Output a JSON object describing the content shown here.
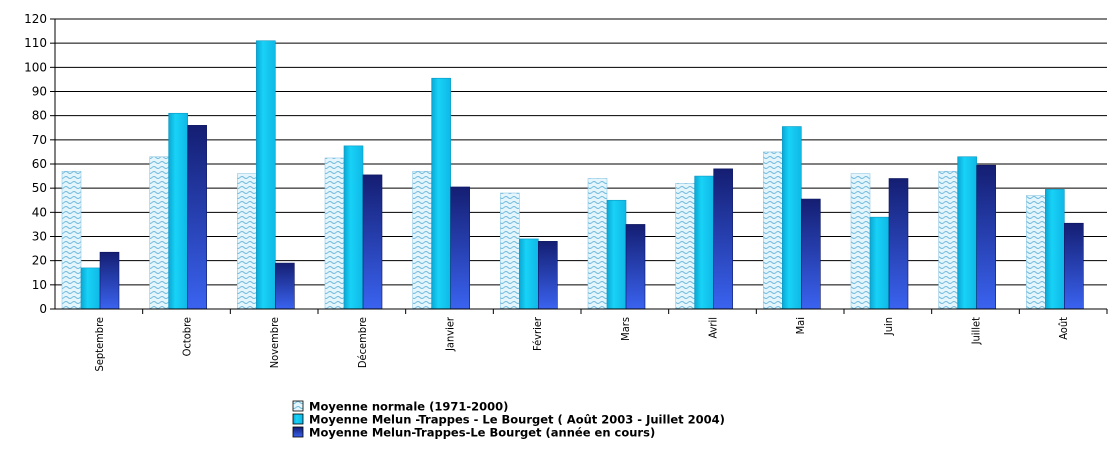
{
  "chart_data": {
    "type": "bar",
    "title": "",
    "xlabel": "",
    "ylabel": "",
    "ylim": [
      0,
      120
    ],
    "yticks": [
      0,
      10,
      20,
      30,
      40,
      50,
      60,
      70,
      80,
      90,
      100,
      110,
      120
    ],
    "grid": true,
    "legend_position": "bottom",
    "categories": [
      "Septembre",
      "Octobre",
      "Novembre",
      "Décembre",
      "Janvier",
      "Février",
      "Mars",
      "Avril",
      "Mai",
      "Juin",
      "Juillet",
      "Août"
    ],
    "series": [
      {
        "name": "Moyenne normale  (1971-2000)",
        "pattern": "wave",
        "color": "#dff4fb",
        "values": [
          57,
          63,
          56,
          62.5,
          57,
          48,
          54,
          52,
          65,
          56,
          57,
          47
        ]
      },
      {
        "name": "Moyenne   Melun -Trappes - Le Bourget ( Août 2003 - Juillet 2004)",
        "color": "#11c8f0",
        "values": [
          17,
          81,
          111,
          67.5,
          95.5,
          29,
          45,
          55,
          75.5,
          38,
          63,
          49.5
        ]
      },
      {
        "name": "Moyenne Melun-Trappes-Le Bourget (année en cours)",
        "color": "#1c2a9c",
        "values": [
          23.5,
          76,
          19,
          55.5,
          50.5,
          28,
          35,
          58,
          45.5,
          54,
          59.5,
          35.5
        ]
      }
    ]
  }
}
